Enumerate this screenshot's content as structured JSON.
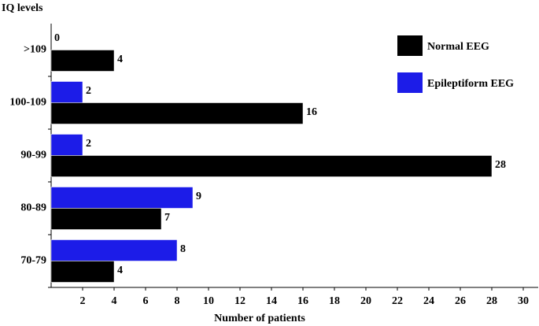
{
  "chart_data": {
    "type": "bar",
    "orientation": "horizontal",
    "y_label": "IQ levels",
    "x_label": "Number of patients",
    "categories": [
      ">109",
      "100-109",
      "90-99",
      "80-89",
      "70-79"
    ],
    "series": [
      {
        "name": "Epileptiform EEG",
        "color": "#1c1ce8",
        "values": [
          0,
          2,
          2,
          9,
          8
        ]
      },
      {
        "name": "Normal EEG",
        "color": "#000000",
        "values": [
          4,
          16,
          28,
          7,
          4
        ]
      }
    ],
    "xlim": [
      0,
      30
    ],
    "xticks": [
      2,
      4,
      6,
      8,
      10,
      12,
      14,
      16,
      18,
      20,
      22,
      24,
      26,
      28,
      30
    ],
    "legend": "upper right",
    "value_labels_shown": true
  }
}
